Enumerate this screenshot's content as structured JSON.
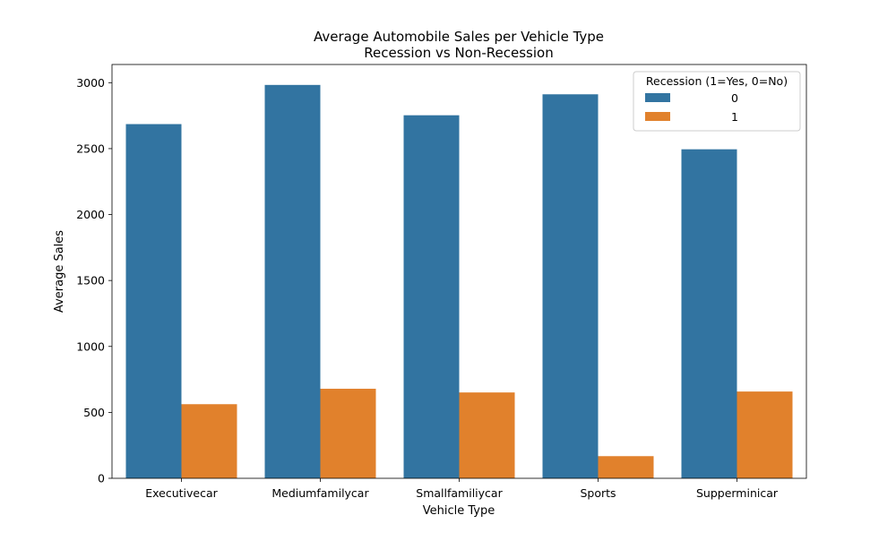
{
  "chart_data": {
    "type": "bar",
    "title_line1": "Average Automobile Sales per Vehicle Type",
    "title_line2": "Recession vs Non-Recession",
    "xlabel": "Vehicle Type",
    "ylabel": "Average Sales",
    "categories": [
      "Executivecar",
      "Mediumfamilycar",
      "Smallfamiliycar",
      "Sports",
      "Supperminicar"
    ],
    "series": [
      {
        "name": "0",
        "color": "#3274a1",
        "values": [
          2686,
          2983,
          2753,
          2912,
          2495
        ]
      },
      {
        "name": "1",
        "color": "#e1812c",
        "values": [
          562,
          679,
          651,
          168,
          658
        ]
      }
    ],
    "ylim": [
      0,
      3138
    ],
    "yticks": [
      0,
      500,
      1000,
      1500,
      2000,
      2500,
      3000
    ],
    "legend": {
      "title": "Recession (1=Yes, 0=No)",
      "position": "top-right"
    },
    "grid": false
  }
}
